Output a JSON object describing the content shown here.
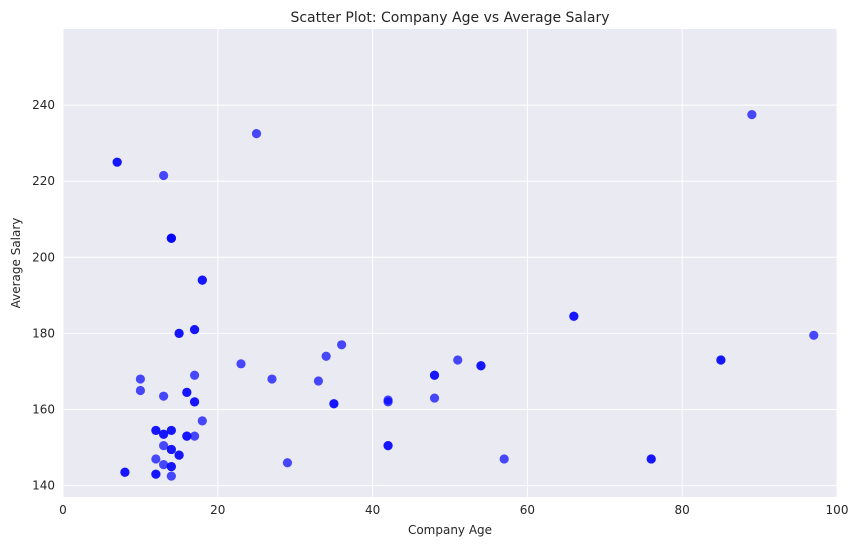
{
  "chart_data": {
    "type": "scatter",
    "title": "Scatter Plot: Company Age vs Average Salary",
    "xlabel": "Company Age",
    "ylabel": "Average Salary",
    "xlim": [
      0,
      100
    ],
    "ylim": [
      137,
      260
    ],
    "xticks": [
      0,
      20,
      40,
      60,
      80,
      100
    ],
    "yticks": [
      140,
      160,
      180,
      200,
      220,
      240
    ],
    "grid": true,
    "marker_color": "#0000ff",
    "background_color": "#eaeaf2",
    "grid_color": "#ffffff",
    "points": [
      {
        "x": 7,
        "y": 225
      },
      {
        "x": 7,
        "y": 225
      },
      {
        "x": 8,
        "y": 143.5
      },
      {
        "x": 8,
        "y": 143.5
      },
      {
        "x": 10,
        "y": 168
      },
      {
        "x": 10,
        "y": 165
      },
      {
        "x": 12,
        "y": 154.5
      },
      {
        "x": 12,
        "y": 154.5
      },
      {
        "x": 12,
        "y": 147
      },
      {
        "x": 12,
        "y": 143
      },
      {
        "x": 12,
        "y": 143
      },
      {
        "x": 13,
        "y": 221.5
      },
      {
        "x": 13,
        "y": 163.5
      },
      {
        "x": 13,
        "y": 153.5
      },
      {
        "x": 13,
        "y": 153.5
      },
      {
        "x": 13,
        "y": 150.5
      },
      {
        "x": 13,
        "y": 145.5
      },
      {
        "x": 14,
        "y": 205
      },
      {
        "x": 14,
        "y": 205
      },
      {
        "x": 14,
        "y": 205
      },
      {
        "x": 14,
        "y": 154.5
      },
      {
        "x": 14,
        "y": 154.5
      },
      {
        "x": 14,
        "y": 149.5
      },
      {
        "x": 14,
        "y": 149.5
      },
      {
        "x": 14,
        "y": 145
      },
      {
        "x": 14,
        "y": 145
      },
      {
        "x": 14,
        "y": 142.5
      },
      {
        "x": 15,
        "y": 180
      },
      {
        "x": 15,
        "y": 180
      },
      {
        "x": 15,
        "y": 148
      },
      {
        "x": 15,
        "y": 148
      },
      {
        "x": 16,
        "y": 164.5
      },
      {
        "x": 16,
        "y": 164.5
      },
      {
        "x": 16,
        "y": 153
      },
      {
        "x": 16,
        "y": 153
      },
      {
        "x": 17,
        "y": 181
      },
      {
        "x": 17,
        "y": 181
      },
      {
        "x": 17,
        "y": 169
      },
      {
        "x": 17,
        "y": 162
      },
      {
        "x": 17,
        "y": 162
      },
      {
        "x": 17,
        "y": 153
      },
      {
        "x": 18,
        "y": 194
      },
      {
        "x": 18,
        "y": 194
      },
      {
        "x": 18,
        "y": 157
      },
      {
        "x": 23,
        "y": 172
      },
      {
        "x": 25,
        "y": 232.5
      },
      {
        "x": 27,
        "y": 168
      },
      {
        "x": 29,
        "y": 146
      },
      {
        "x": 33,
        "y": 167.5
      },
      {
        "x": 34,
        "y": 174
      },
      {
        "x": 35,
        "y": 161.5
      },
      {
        "x": 35,
        "y": 161.5
      },
      {
        "x": 36,
        "y": 177
      },
      {
        "x": 42,
        "y": 162.5
      },
      {
        "x": 42,
        "y": 162
      },
      {
        "x": 42,
        "y": 150.5
      },
      {
        "x": 42,
        "y": 150.5
      },
      {
        "x": 48,
        "y": 169
      },
      {
        "x": 48,
        "y": 169
      },
      {
        "x": 48,
        "y": 163
      },
      {
        "x": 51,
        "y": 173
      },
      {
        "x": 54,
        "y": 171.5
      },
      {
        "x": 54,
        "y": 171.5
      },
      {
        "x": 57,
        "y": 147
      },
      {
        "x": 66,
        "y": 184.5
      },
      {
        "x": 66,
        "y": 184.5
      },
      {
        "x": 76,
        "y": 147
      },
      {
        "x": 76,
        "y": 147
      },
      {
        "x": 85,
        "y": 173
      },
      {
        "x": 85,
        "y": 173
      },
      {
        "x": 89,
        "y": 237.5
      },
      {
        "x": 97,
        "y": 179.5
      }
    ]
  }
}
